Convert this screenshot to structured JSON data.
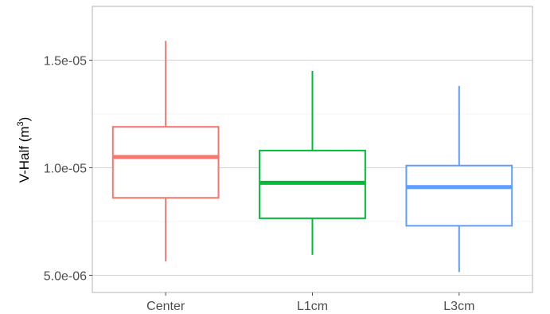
{
  "chart_data": {
    "type": "boxplot",
    "title": "",
    "xlabel": "",
    "ylabel": {
      "text": "V-Half (m",
      "superscript": "3",
      "suffix": ")"
    },
    "ylim": [
      4.2e-06,
      1.75e-05
    ],
    "yticks": [
      {
        "value": 5e-06,
        "label": "5.0e-06"
      },
      {
        "value": 1e-05,
        "label": "1.0e-05"
      },
      {
        "value": 1.5e-05,
        "label": "1.5e-05"
      }
    ],
    "y_minor_gridlines": [
      7.5e-06,
      1.25e-05
    ],
    "grid": true,
    "legend": "none",
    "categories": [
      "Center",
      "L1cm",
      "L3cm"
    ],
    "boxes": [
      {
        "category": "Center",
        "min": 5.65e-06,
        "q1": 8.6e-06,
        "median": 1.05e-05,
        "q3": 1.19e-05,
        "max": 1.59e-05,
        "color": "#F8766D"
      },
      {
        "category": "L1cm",
        "min": 5.95e-06,
        "q1": 7.65e-06,
        "median": 9.3e-06,
        "q3": 1.08e-05,
        "max": 1.45e-05,
        "color": "#00BA38"
      },
      {
        "category": "L3cm",
        "min": 5.15e-06,
        "q1": 7.3e-06,
        "median": 9.1e-06,
        "q3": 1.01e-05,
        "max": 1.38e-05,
        "color": "#619CFF"
      }
    ]
  }
}
